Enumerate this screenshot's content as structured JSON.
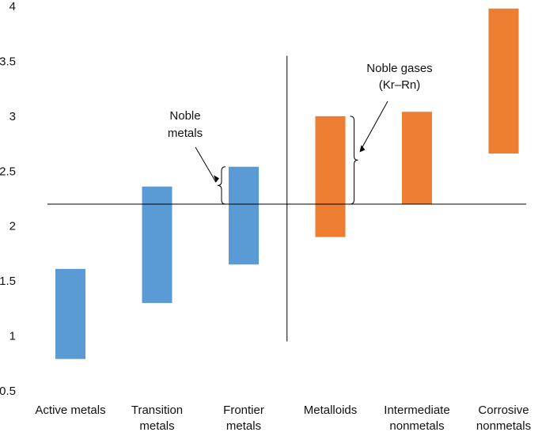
{
  "chart_data": {
    "type": "bar",
    "title": "",
    "xlabel": "",
    "ylabel": "",
    "ylim": [
      0.5,
      4
    ],
    "yticks": [
      "0.5",
      "1",
      "1.5",
      "2",
      "2.5",
      "3",
      "3.5",
      "4"
    ],
    "grid": false,
    "legend": "none",
    "categories": [
      [
        "Active metals"
      ],
      [
        "Transition",
        "metals"
      ],
      [
        "Frontier",
        "metals"
      ],
      [
        "Metalloids"
      ],
      [
        "Intermediate",
        "nonmetals"
      ],
      [
        "Corrosive",
        "nonmetals"
      ]
    ],
    "series": [
      {
        "range_low": [
          0.79,
          1.3,
          1.65,
          1.9,
          2.2,
          2.66
        ],
        "range_high": [
          1.61,
          2.36,
          2.54,
          3.0,
          3.04,
          3.98
        ],
        "colors": [
          "#5b9bd5",
          "#5b9bd5",
          "#5b9bd5",
          "#ed7d31",
          "#ed7d31",
          "#ed7d31"
        ]
      }
    ],
    "reference_lines": {
      "horizontal_y": 2.2,
      "vertical_between": [
        "Frontier metals",
        "Metalloids"
      ],
      "vertical_y_range": [
        0.95,
        3.55
      ]
    },
    "annotations": [
      {
        "lines": [
          "Noble",
          "metals"
        ],
        "brace_y": [
          2.2,
          2.54
        ],
        "category": "Frontier metals"
      },
      {
        "lines": [
          "Noble gases",
          "(Kr–Rn)"
        ],
        "brace_y": [
          2.2,
          3.0
        ],
        "category": "Metalloids"
      }
    ]
  }
}
